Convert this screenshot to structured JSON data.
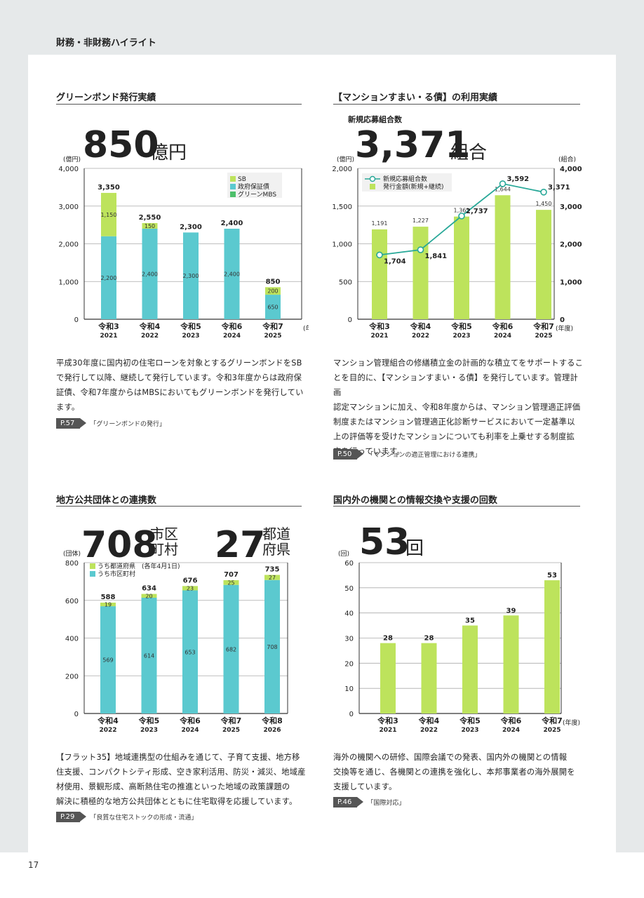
{
  "header": {
    "title": "財務・非財務ハイライト"
  },
  "page_number": "17",
  "colors": {
    "green": "#bde35c",
    "cyan": "#5bc9cf",
    "mid_green": "#4dbf6a",
    "line": "#28a898"
  },
  "green_bond": {
    "title": "グリーンボンド発行実績",
    "headline_num": "850",
    "headline_unit": "億円",
    "body": [
      "平成30年度に国内初の住宅ローンを対象とするグリーンボンドをSB",
      "で発行して以降、継続して発行しています。令和3年度からは政府保",
      "証債、令和7年度からはMBSにおいてもグリーンボンドを発行してい",
      "ます。"
    ],
    "ref_page": "P.57",
    "ref_text": "「グリーンボンドの発行」"
  },
  "mansion": {
    "title": "【マンションすまい・る債】の利用実績",
    "sub_label": "新規応募組合数",
    "headline_num": "3,371",
    "headline_unit": "組合",
    "body": [
      "マンション管理組合の修繕積立金の計画的な積立てをサポートするこ",
      "とを目的に、【マンションすまい・る債】を発行しています。管理計画",
      "認定マンションに加え、令和8年度からは、マンション管理適正評価",
      "制度またはマンション管理適正化診断サービスにおいて一定基準以",
      "上の評価等を受けたマンションについても利率を上乗せする制度拡",
      "充を行っています。"
    ],
    "ref_page": "P.50",
    "ref_text": "「マンションの適正管理における連携」"
  },
  "local_gov": {
    "title": "地方公共団体との連携数",
    "headline_num1": "708",
    "headline_unit1_a": "市区",
    "headline_unit1_b": "町村",
    "headline_num2": "27",
    "headline_unit2_a": "都道",
    "headline_unit2_b": "府県",
    "body": [
      "【フラット35】地域連携型の仕組みを通じて、子育て支援、地方移",
      "住支援、コンパクトシティ形成、空き家利活用、防災・減災、地域産",
      "材使用、景観形成、高断熱住宅の推進といった地域の政策課題の",
      "解決に積極的な地方公共団体とともに住宅取得を応援しています。"
    ],
    "ref_page": "P.29",
    "ref_text": "「良質な住宅ストックの形成・流通」"
  },
  "intl": {
    "title": "国内外の機関との情報交換や支援の回数",
    "headline_num": "53",
    "headline_unit": "回",
    "body": [
      "海外の機関への研修、国際会議での発表、国内外の機関との情報",
      "交換等を通じ、各機関との連携を強化し、本邦事業者の海外展開を",
      "支援しています。"
    ],
    "ref_page": "P.46",
    "ref_text": "「国際対応」"
  },
  "chart_data": [
    {
      "type": "bar",
      "ylabel": "(億円)",
      "xunit": "(年度)",
      "ylim": [
        0,
        4000
      ],
      "yticks": [
        "0",
        "1,000",
        "2,000",
        "3,000",
        "4,000"
      ],
      "categories": [
        "令和3",
        "令和4",
        "令和5",
        "令和6",
        "令和7"
      ],
      "years": [
        "2021",
        "2022",
        "2023",
        "2024",
        "2025"
      ],
      "series": [
        {
          "name": "政府保証債",
          "values": [
            2200,
            2400,
            2300,
            2400,
            0
          ],
          "labels": [
            "2,200",
            "2,400",
            "2,300",
            "2,400",
            ""
          ]
        },
        {
          "name": "グリーンMBS",
          "values": [
            0,
            0,
            0,
            0,
            650
          ],
          "labels": [
            "",
            "",
            "",
            "",
            "650"
          ]
        },
        {
          "name": "SB",
          "values": [
            1150,
            150,
            0,
            0,
            200
          ],
          "labels": [
            "1,150",
            "150",
            "",
            "",
            "200"
          ]
        }
      ],
      "totals": [
        "3,350",
        "2,550",
        "2,300",
        "2,400",
        "850"
      ],
      "legend": [
        "SB",
        "政府保証債",
        "グリーンMBS"
      ],
      "legend_position": "top-right"
    },
    {
      "type": "bar+line",
      "ylabel_left": "(億円)",
      "ylabel_right": "(組合)",
      "xunit": "(年度)",
      "ylim_left": [
        0,
        2000
      ],
      "ylim_right": [
        0,
        4000
      ],
      "yticks_left": [
        "0",
        "500",
        "1,000",
        "1,500",
        "2,000"
      ],
      "yticks_right": [
        "0",
        "1,000",
        "2,000",
        "3,000",
        "4,000"
      ],
      "categories": [
        "令和3",
        "令和4",
        "令和5",
        "令和6",
        "令和7"
      ],
      "years": [
        "2021",
        "2022",
        "2023",
        "2024",
        "2025"
      ],
      "series": [
        {
          "name": "発行金額(新規+継続)",
          "values": [
            1191,
            1227,
            1361,
            1644,
            1450
          ],
          "labels": [
            "1,191",
            "1,227",
            "1,361",
            "1,644",
            "1,450"
          ]
        },
        {
          "name": "新規応募組合数",
          "values": [
            1704,
            1841,
            2737,
            3592,
            3371
          ],
          "labels": [
            "1,704",
            "1,841",
            "2,737",
            "3,592",
            "3,371"
          ]
        }
      ],
      "legend": [
        "新規応募組合数",
        "発行金額(新規+継続)"
      ],
      "legend_position": "top-left"
    },
    {
      "type": "bar",
      "ylabel": "(団体)",
      "ylim": [
        0,
        800
      ],
      "yticks": [
        "0",
        "200",
        "400",
        "600",
        "800"
      ],
      "categories": [
        "令和4",
        "令和5",
        "令和6",
        "令和7",
        "令和8"
      ],
      "years": [
        "2022",
        "2023",
        "2024",
        "2025",
        "2026"
      ],
      "series": [
        {
          "name": "うち市区町村",
          "values": [
            569,
            614,
            653,
            682,
            708
          ],
          "labels": [
            "569",
            "614",
            "653",
            "682",
            "708"
          ]
        },
        {
          "name": "うち都道府県",
          "values": [
            19,
            20,
            23,
            25,
            27
          ],
          "labels": [
            "19",
            "20",
            "23",
            "25",
            "27"
          ]
        }
      ],
      "totals": [
        "588",
        "634",
        "676",
        "707",
        "735"
      ],
      "legend": [
        "うち都道府県",
        "うち市区町村"
      ],
      "legend_note": "(各年4月1日)",
      "legend_position": "top-left"
    },
    {
      "type": "bar",
      "ylabel": "(回)",
      "xunit": "(年度)",
      "ylim": [
        0,
        60
      ],
      "yticks": [
        "0",
        "10",
        "20",
        "30",
        "40",
        "50",
        "60"
      ],
      "categories": [
        "令和3",
        "令和4",
        "令和5",
        "令和6",
        "令和7"
      ],
      "years": [
        "2021",
        "2022",
        "2023",
        "2024",
        "2025"
      ],
      "series": [
        {
          "values": [
            28,
            28,
            35,
            39,
            53
          ],
          "labels": [
            "28",
            "28",
            "35",
            "39",
            "53"
          ]
        }
      ]
    }
  ]
}
